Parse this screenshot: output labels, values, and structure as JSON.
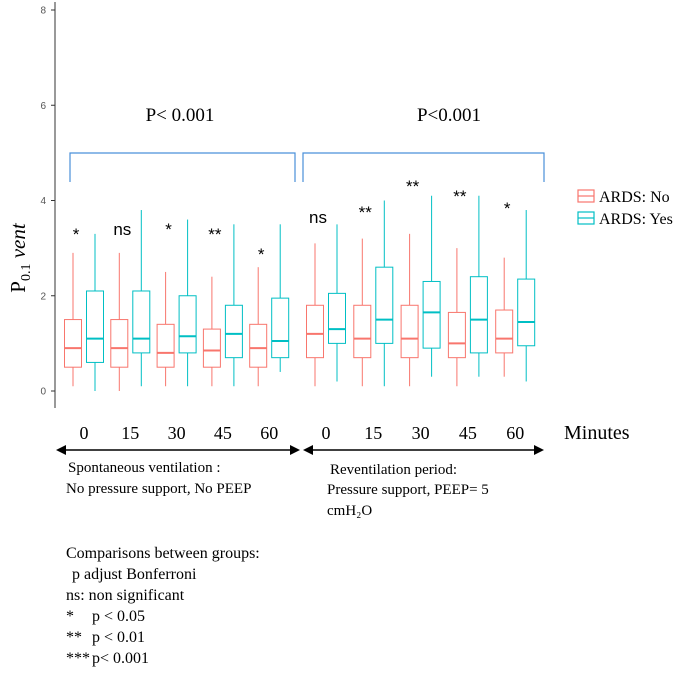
{
  "chart_data": {
    "type": "boxplot",
    "ylabel_main": "P",
    "ylabel_sub": "0.1",
    "ylabel_tail": "vent",
    "xlabel": "Minutes",
    "ylim": [
      0,
      8
    ],
    "yticks": [
      "0",
      "2",
      "4",
      "6",
      "8"
    ],
    "ytick_values": [
      0,
      2,
      4,
      6,
      8
    ],
    "categories": [
      "0",
      "15",
      "30",
      "45",
      "60",
      "0",
      "15",
      "30",
      "45",
      "60"
    ],
    "significance": [
      "*",
      "ns",
      "*",
      "**",
      "*",
      "ns",
      "**",
      "**",
      "**",
      "*"
    ],
    "series": [
      {
        "name": "ARDS: No",
        "color": "#F8766D",
        "boxes": [
          {
            "min": 0.1,
            "q1": 0.5,
            "median": 0.9,
            "q3": 1.5,
            "max": 2.9
          },
          {
            "min": 0.0,
            "q1": 0.5,
            "median": 0.9,
            "q3": 1.5,
            "max": 2.9
          },
          {
            "min": 0.1,
            "q1": 0.5,
            "median": 0.8,
            "q3": 1.4,
            "max": 2.5
          },
          {
            "min": 0.1,
            "q1": 0.5,
            "median": 0.85,
            "q3": 1.3,
            "max": 2.4
          },
          {
            "min": 0.1,
            "q1": 0.5,
            "median": 0.9,
            "q3": 1.4,
            "max": 2.6
          },
          {
            "min": 0.1,
            "q1": 0.7,
            "median": 1.2,
            "q3": 1.8,
            "max": 3.1
          },
          {
            "min": 0.1,
            "q1": 0.7,
            "median": 1.1,
            "q3": 1.8,
            "max": 3.2
          },
          {
            "min": 0.1,
            "q1": 0.7,
            "median": 1.1,
            "q3": 1.8,
            "max": 3.3
          },
          {
            "min": 0.1,
            "q1": 0.7,
            "median": 1.0,
            "q3": 1.65,
            "max": 3.0
          },
          {
            "min": 0.3,
            "q1": 0.8,
            "median": 1.1,
            "q3": 1.7,
            "max": 2.8
          }
        ]
      },
      {
        "name": "ARDS: Yes",
        "color": "#00BFC4",
        "boxes": [
          {
            "min": 0.0,
            "q1": 0.6,
            "median": 1.1,
            "q3": 2.1,
            "max": 3.3
          },
          {
            "min": 0.1,
            "q1": 0.8,
            "median": 1.1,
            "q3": 2.1,
            "max": 3.8
          },
          {
            "min": 0.1,
            "q1": 0.8,
            "median": 1.15,
            "q3": 2.0,
            "max": 3.6
          },
          {
            "min": 0.1,
            "q1": 0.7,
            "median": 1.2,
            "q3": 1.8,
            "max": 3.5
          },
          {
            "min": 0.4,
            "q1": 0.7,
            "median": 1.05,
            "q3": 1.95,
            "max": 3.5
          },
          {
            "min": 0.2,
            "q1": 1.0,
            "median": 1.3,
            "q3": 2.05,
            "max": 3.5
          },
          {
            "min": 0.1,
            "q1": 1.0,
            "median": 1.5,
            "q3": 2.6,
            "max": 4.0
          },
          {
            "min": 0.3,
            "q1": 0.9,
            "median": 1.65,
            "q3": 2.3,
            "max": 4.1
          },
          {
            "min": 0.3,
            "q1": 0.8,
            "median": 1.5,
            "q3": 2.4,
            "max": 4.1
          },
          {
            "min": 0.2,
            "q1": 0.95,
            "median": 1.45,
            "q3": 2.35,
            "max": 3.8
          }
        ]
      }
    ],
    "brackets": [
      {
        "label": "P< 0.001",
        "from": 0,
        "to": 4,
        "color": "#4A90D9"
      },
      {
        "label": "P<0.001",
        "from": 5,
        "to": 9,
        "color": "#4A90D9"
      }
    ],
    "periods": [
      {
        "line1": "Spontaneous ventilation :",
        "line2": "No pressure support, No PEEP",
        "line3": ""
      },
      {
        "line1": "Reventilation period:",
        "line2": "Pressure support, PEEP= 5",
        "line3": "cmH₂O"
      }
    ],
    "legend_position": "right"
  },
  "notes": {
    "title": "Comparisons between groups:",
    "adjust": "p adjust Bonferroni",
    "ns": "ns: non significant",
    "rows": [
      {
        "sym": "*",
        "text": "p < 0.05"
      },
      {
        "sym": "**",
        "text": "p < 0.01"
      },
      {
        "sym": "***",
        "text": "p< 0.001"
      }
    ]
  }
}
